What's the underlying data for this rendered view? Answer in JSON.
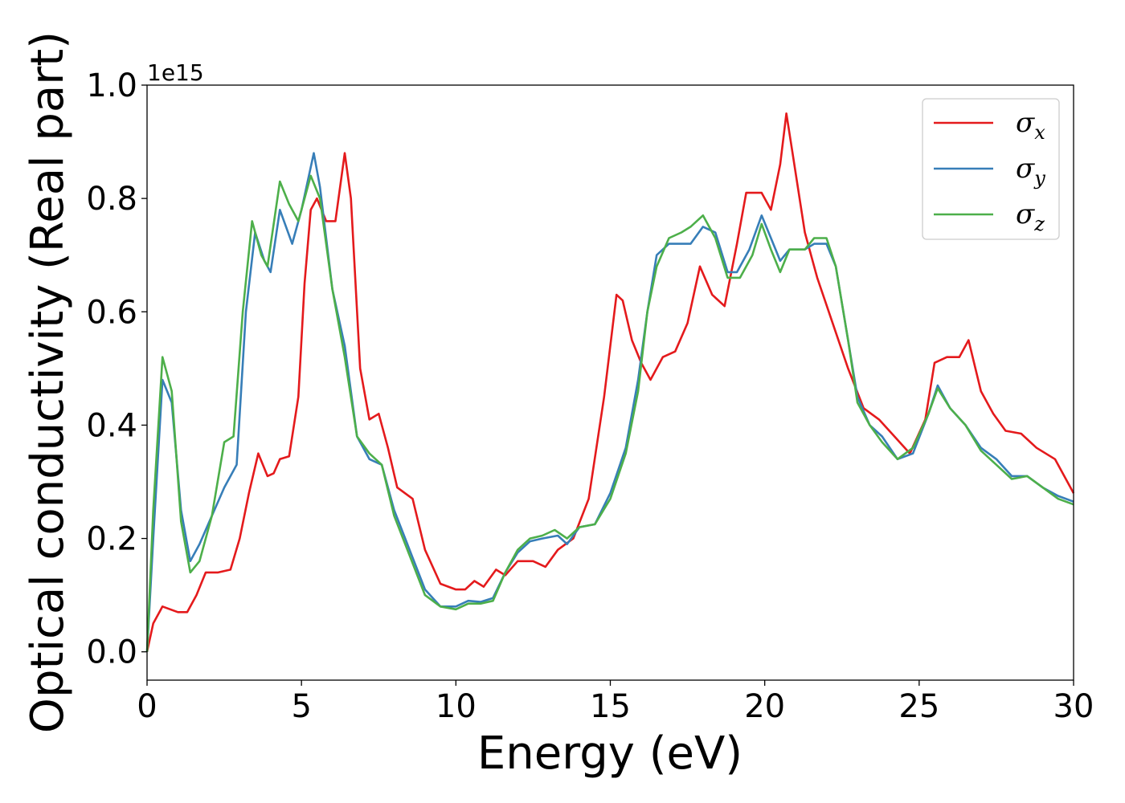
{
  "chart_data": {
    "type": "line",
    "xlabel": "Energy (eV)",
    "ylabel": "Optical conductivity (Real part)",
    "y_offset_text": "1e15",
    "xlim": [
      0,
      30
    ],
    "ylim": [
      -0.05,
      1.0
    ],
    "x_ticks": [
      "0",
      "5",
      "10",
      "15",
      "20",
      "25",
      "30"
    ],
    "y_ticks": [
      "0.0",
      "0.2",
      "0.4",
      "0.6",
      "0.8",
      "1.0"
    ],
    "grid": false,
    "legend_position": "top-right",
    "series": [
      {
        "name": "σx",
        "symbol": "σ",
        "subscript": "x",
        "color": "#e41a1c",
        "points": [
          [
            0,
            0
          ],
          [
            0.2,
            0.05
          ],
          [
            0.5,
            0.08
          ],
          [
            1.0,
            0.07
          ],
          [
            1.3,
            0.07
          ],
          [
            1.6,
            0.1
          ],
          [
            1.9,
            0.14
          ],
          [
            2.3,
            0.14
          ],
          [
            2.7,
            0.145
          ],
          [
            3.0,
            0.2
          ],
          [
            3.3,
            0.28
          ],
          [
            3.6,
            0.35
          ],
          [
            3.9,
            0.31
          ],
          [
            4.1,
            0.315
          ],
          [
            4.3,
            0.34
          ],
          [
            4.6,
            0.345
          ],
          [
            4.9,
            0.45
          ],
          [
            5.1,
            0.65
          ],
          [
            5.3,
            0.78
          ],
          [
            5.5,
            0.8
          ],
          [
            5.8,
            0.76
          ],
          [
            6.1,
            0.76
          ],
          [
            6.4,
            0.88
          ],
          [
            6.6,
            0.8
          ],
          [
            6.9,
            0.5
          ],
          [
            7.2,
            0.41
          ],
          [
            7.5,
            0.42
          ],
          [
            7.8,
            0.36
          ],
          [
            8.1,
            0.29
          ],
          [
            8.6,
            0.27
          ],
          [
            9.0,
            0.18
          ],
          [
            9.5,
            0.12
          ],
          [
            10.0,
            0.11
          ],
          [
            10.3,
            0.11
          ],
          [
            10.6,
            0.125
          ],
          [
            10.9,
            0.115
          ],
          [
            11.3,
            0.145
          ],
          [
            11.6,
            0.135
          ],
          [
            12.0,
            0.16
          ],
          [
            12.5,
            0.16
          ],
          [
            12.9,
            0.15
          ],
          [
            13.3,
            0.18
          ],
          [
            13.8,
            0.2
          ],
          [
            14.3,
            0.27
          ],
          [
            14.8,
            0.45
          ],
          [
            15.2,
            0.63
          ],
          [
            15.4,
            0.62
          ],
          [
            15.7,
            0.55
          ],
          [
            16.0,
            0.51
          ],
          [
            16.3,
            0.48
          ],
          [
            16.7,
            0.52
          ],
          [
            17.1,
            0.53
          ],
          [
            17.5,
            0.58
          ],
          [
            17.9,
            0.68
          ],
          [
            18.3,
            0.63
          ],
          [
            18.7,
            0.61
          ],
          [
            19.1,
            0.72
          ],
          [
            19.4,
            0.81
          ],
          [
            19.9,
            0.81
          ],
          [
            20.2,
            0.78
          ],
          [
            20.5,
            0.86
          ],
          [
            20.7,
            0.95
          ],
          [
            20.9,
            0.88
          ],
          [
            21.3,
            0.74
          ],
          [
            21.7,
            0.66
          ],
          [
            22.2,
            0.58
          ],
          [
            22.7,
            0.5
          ],
          [
            23.2,
            0.43
          ],
          [
            23.7,
            0.41
          ],
          [
            24.2,
            0.38
          ],
          [
            24.7,
            0.35
          ],
          [
            25.2,
            0.41
          ],
          [
            25.5,
            0.51
          ],
          [
            25.9,
            0.52
          ],
          [
            26.3,
            0.52
          ],
          [
            26.6,
            0.55
          ],
          [
            27.0,
            0.46
          ],
          [
            27.4,
            0.42
          ],
          [
            27.8,
            0.39
          ],
          [
            28.3,
            0.385
          ],
          [
            28.8,
            0.36
          ],
          [
            29.4,
            0.34
          ],
          [
            30.0,
            0.28
          ]
        ]
      },
      {
        "name": "σy",
        "symbol": "σ",
        "subscript": "y",
        "color": "#377eb8",
        "points": [
          [
            0,
            0
          ],
          [
            0.2,
            0.2
          ],
          [
            0.5,
            0.48
          ],
          [
            0.8,
            0.44
          ],
          [
            1.1,
            0.25
          ],
          [
            1.4,
            0.16
          ],
          [
            1.7,
            0.19
          ],
          [
            2.1,
            0.24
          ],
          [
            2.5,
            0.29
          ],
          [
            2.9,
            0.33
          ],
          [
            3.2,
            0.6
          ],
          [
            3.5,
            0.74
          ],
          [
            3.8,
            0.69
          ],
          [
            4.0,
            0.67
          ],
          [
            4.3,
            0.78
          ],
          [
            4.7,
            0.72
          ],
          [
            5.0,
            0.78
          ],
          [
            5.4,
            0.88
          ],
          [
            5.6,
            0.82
          ],
          [
            6.0,
            0.64
          ],
          [
            6.4,
            0.54
          ],
          [
            6.8,
            0.38
          ],
          [
            7.2,
            0.34
          ],
          [
            7.6,
            0.33
          ],
          [
            8.0,
            0.25
          ],
          [
            8.5,
            0.18
          ],
          [
            9.0,
            0.11
          ],
          [
            9.5,
            0.08
          ],
          [
            10.0,
            0.08
          ],
          [
            10.4,
            0.09
          ],
          [
            10.8,
            0.088
          ],
          [
            11.2,
            0.095
          ],
          [
            11.6,
            0.14
          ],
          [
            12.0,
            0.175
          ],
          [
            12.4,
            0.195
          ],
          [
            12.8,
            0.2
          ],
          [
            13.3,
            0.205
          ],
          [
            13.6,
            0.19
          ],
          [
            14.0,
            0.22
          ],
          [
            14.5,
            0.225
          ],
          [
            15.0,
            0.28
          ],
          [
            15.5,
            0.36
          ],
          [
            15.9,
            0.48
          ],
          [
            16.2,
            0.6
          ],
          [
            16.5,
            0.7
          ],
          [
            16.9,
            0.72
          ],
          [
            17.3,
            0.72
          ],
          [
            17.6,
            0.72
          ],
          [
            18.0,
            0.75
          ],
          [
            18.4,
            0.74
          ],
          [
            18.8,
            0.67
          ],
          [
            19.1,
            0.67
          ],
          [
            19.5,
            0.71
          ],
          [
            19.9,
            0.77
          ],
          [
            20.2,
            0.73
          ],
          [
            20.5,
            0.69
          ],
          [
            20.8,
            0.71
          ],
          [
            21.3,
            0.71
          ],
          [
            21.6,
            0.72
          ],
          [
            22.0,
            0.72
          ],
          [
            22.3,
            0.68
          ],
          [
            22.7,
            0.55
          ],
          [
            23.0,
            0.45
          ],
          [
            23.4,
            0.4
          ],
          [
            23.8,
            0.38
          ],
          [
            24.3,
            0.34
          ],
          [
            24.8,
            0.35
          ],
          [
            25.3,
            0.42
          ],
          [
            25.6,
            0.47
          ],
          [
            26.0,
            0.43
          ],
          [
            26.5,
            0.4
          ],
          [
            27.0,
            0.36
          ],
          [
            27.5,
            0.34
          ],
          [
            28.0,
            0.31
          ],
          [
            28.5,
            0.31
          ],
          [
            29.0,
            0.29
          ],
          [
            29.5,
            0.275
          ],
          [
            30.0,
            0.265
          ]
        ]
      },
      {
        "name": "σz",
        "symbol": "σ",
        "subscript": "z",
        "color": "#4daf4a",
        "points": [
          [
            0,
            0
          ],
          [
            0.2,
            0.25
          ],
          [
            0.5,
            0.52
          ],
          [
            0.8,
            0.46
          ],
          [
            1.1,
            0.23
          ],
          [
            1.4,
            0.14
          ],
          [
            1.7,
            0.16
          ],
          [
            2.1,
            0.24
          ],
          [
            2.5,
            0.37
          ],
          [
            2.8,
            0.38
          ],
          [
            3.1,
            0.6
          ],
          [
            3.4,
            0.76
          ],
          [
            3.7,
            0.7
          ],
          [
            3.9,
            0.68
          ],
          [
            4.3,
            0.83
          ],
          [
            4.6,
            0.79
          ],
          [
            4.9,
            0.76
          ],
          [
            5.3,
            0.84
          ],
          [
            5.6,
            0.8
          ],
          [
            6.0,
            0.64
          ],
          [
            6.4,
            0.52
          ],
          [
            6.8,
            0.38
          ],
          [
            7.2,
            0.35
          ],
          [
            7.6,
            0.33
          ],
          [
            8.0,
            0.24
          ],
          [
            8.5,
            0.17
          ],
          [
            9.0,
            0.1
          ],
          [
            9.5,
            0.08
          ],
          [
            10.0,
            0.075
          ],
          [
            10.4,
            0.085
          ],
          [
            10.8,
            0.085
          ],
          [
            11.2,
            0.09
          ],
          [
            11.6,
            0.14
          ],
          [
            12.0,
            0.18
          ],
          [
            12.4,
            0.2
          ],
          [
            12.8,
            0.205
          ],
          [
            13.2,
            0.215
          ],
          [
            13.6,
            0.2
          ],
          [
            14.0,
            0.22
          ],
          [
            14.5,
            0.225
          ],
          [
            15.0,
            0.27
          ],
          [
            15.5,
            0.35
          ],
          [
            15.9,
            0.46
          ],
          [
            16.2,
            0.6
          ],
          [
            16.5,
            0.68
          ],
          [
            16.9,
            0.73
          ],
          [
            17.3,
            0.74
          ],
          [
            17.6,
            0.75
          ],
          [
            18.0,
            0.77
          ],
          [
            18.4,
            0.73
          ],
          [
            18.8,
            0.66
          ],
          [
            19.2,
            0.66
          ],
          [
            19.6,
            0.7
          ],
          [
            19.9,
            0.755
          ],
          [
            20.2,
            0.71
          ],
          [
            20.5,
            0.67
          ],
          [
            20.8,
            0.71
          ],
          [
            21.3,
            0.71
          ],
          [
            21.6,
            0.73
          ],
          [
            22.0,
            0.73
          ],
          [
            22.3,
            0.68
          ],
          [
            22.7,
            0.55
          ],
          [
            23.0,
            0.44
          ],
          [
            23.4,
            0.4
          ],
          [
            23.8,
            0.37
          ],
          [
            24.3,
            0.34
          ],
          [
            24.8,
            0.36
          ],
          [
            25.3,
            0.42
          ],
          [
            25.6,
            0.465
          ],
          [
            26.0,
            0.43
          ],
          [
            26.5,
            0.4
          ],
          [
            27.0,
            0.355
          ],
          [
            27.5,
            0.33
          ],
          [
            28.0,
            0.305
          ],
          [
            28.5,
            0.31
          ],
          [
            29.0,
            0.29
          ],
          [
            29.5,
            0.27
          ],
          [
            30.0,
            0.26
          ]
        ]
      }
    ]
  }
}
